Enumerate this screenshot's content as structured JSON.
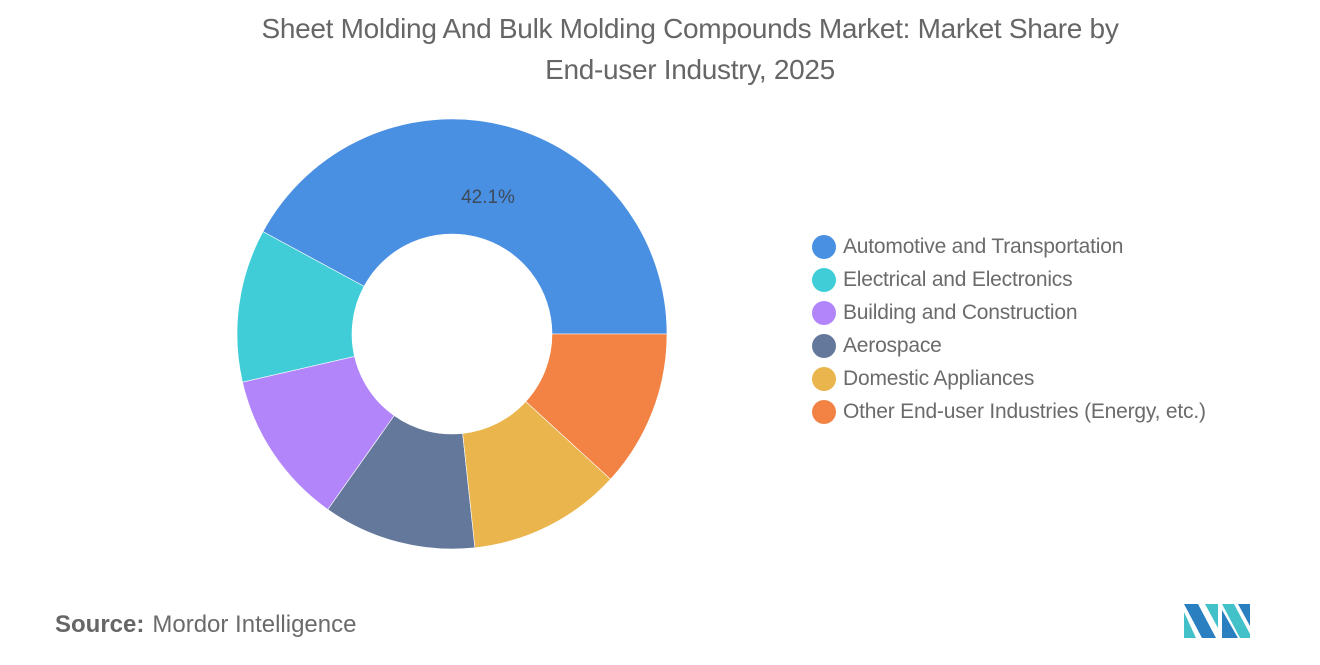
{
  "header": {
    "title_line1": "Sheet Molding And Bulk Molding Compounds Market: Market Share by",
    "title_line2": "End-user Industry, 2025"
  },
  "footer": {
    "source_label": "Source:",
    "source_value": "Mordor Intelligence",
    "logo": "mordor-intelligence-logo"
  },
  "chart_data": {
    "type": "pie",
    "subtype": "donut",
    "title": "Sheet Molding And Bulk Molding Compounds Market: Market Share by End-user Industry, 2025",
    "categories": [
      "Automotive and Transportation",
      "Electrical and Electronics",
      "Building and Construction",
      "Aerospace",
      "Domestic Appliances",
      "Other End-user Industries (Energy, etc.)"
    ],
    "values": [
      42.1,
      11.5,
      11.6,
      11.5,
      11.5,
      11.8
    ],
    "colors": [
      "#4a90e2",
      "#40cdd8",
      "#b286fa",
      "#63789b",
      "#eab54c",
      "#f28344"
    ],
    "data_labels": [
      {
        "category": "Automotive and Transportation",
        "text": "42.1%"
      }
    ],
    "legend_position": "right",
    "unit": "%"
  },
  "legend": {
    "items": [
      {
        "label": "Automotive and Transportation",
        "color": "#4a90e2"
      },
      {
        "label": "Electrical and Electronics",
        "color": "#40cdd8"
      },
      {
        "label": "Building and Construction",
        "color": "#b286fa"
      },
      {
        "label": "Aerospace",
        "color": "#63789b"
      },
      {
        "label": "Domestic Appliances",
        "color": "#eab54c"
      },
      {
        "label": "Other End-user Industries (Energy, etc.)",
        "color": "#f28344"
      }
    ]
  },
  "label": {
    "text": "42.1%",
    "color": "#3d4a5c"
  }
}
